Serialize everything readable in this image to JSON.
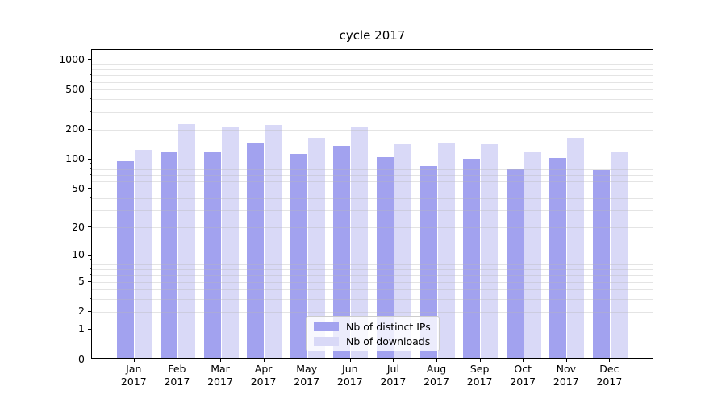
{
  "chart_data": {
    "type": "bar",
    "title": "cycle 2017",
    "categories": [
      "Jan 2017",
      "Feb 2017",
      "Mar 2017",
      "Apr 2017",
      "May 2017",
      "Jun 2017",
      "Jul 2017",
      "Aug 2017",
      "Sep 2017",
      "Oct 2017",
      "Nov 2017",
      "Dec 2017"
    ],
    "series": [
      {
        "name": "Nb of distinct IPs",
        "color": "#a2a2ef",
        "values": [
          92,
          115,
          113,
          143,
          110,
          132,
          102,
          82,
          98,
          77,
          100,
          75
        ]
      },
      {
        "name": "Nb of downloads",
        "color": "#d9d9f7",
        "values": [
          120,
          218,
          205,
          213,
          159,
          202,
          136,
          141,
          136,
          114,
          158,
          113
        ]
      }
    ],
    "xlabel": "",
    "ylabel": "",
    "yscale": "log1p",
    "yticks": [
      0,
      1,
      2,
      5,
      10,
      20,
      50,
      100,
      200,
      500,
      1000
    ],
    "ylim": [
      0,
      1250
    ],
    "grid": true,
    "legend_position": "lower center",
    "colors": {
      "bar_ips": "#a2a2ef",
      "bar_downloads": "#d9d9f7",
      "grid_major": "#b5b5b5",
      "grid_minor": "#e5e5e5",
      "axis": "#000000",
      "background": "#ffffff"
    }
  }
}
